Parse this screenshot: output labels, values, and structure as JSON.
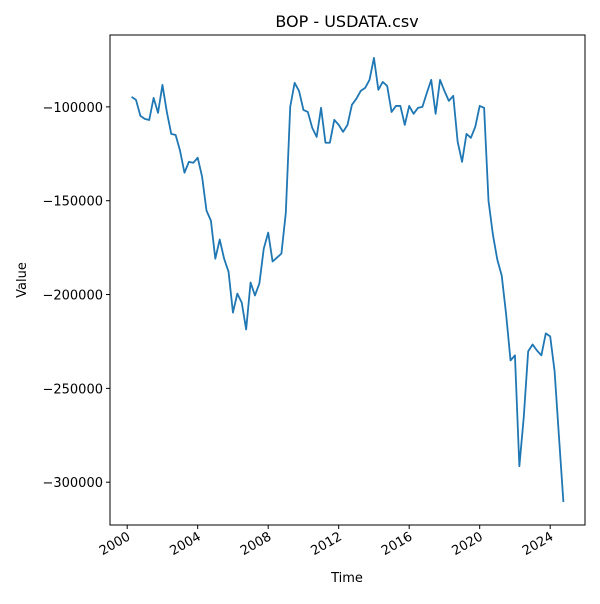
{
  "chart_data": {
    "type": "line",
    "title": "BOP - USDATA.csv",
    "x_label": "Time",
    "y_label": "Value",
    "x": [
      2000.25,
      2000.5,
      2000.75,
      2001,
      2001.25,
      2001.5,
      2001.75,
      2002,
      2002.25,
      2002.5,
      2002.75,
      2003,
      2003.25,
      2003.5,
      2003.75,
      2004,
      2004.25,
      2004.5,
      2004.75,
      2005,
      2005.25,
      2005.5,
      2005.75,
      2006,
      2006.25,
      2006.5,
      2006.75,
      2007,
      2007.25,
      2007.5,
      2007.75,
      2008,
      2008.25,
      2008.5,
      2008.75,
      2009,
      2009.25,
      2009.5,
      2009.75,
      2010,
      2010.25,
      2010.5,
      2010.75,
      2011,
      2011.25,
      2011.5,
      2011.75,
      2012,
      2012.25,
      2012.5,
      2012.75,
      2013,
      2013.25,
      2013.5,
      2013.75,
      2014,
      2014.25,
      2014.5,
      2014.75,
      2015,
      2015.25,
      2015.5,
      2015.75,
      2016,
      2016.25,
      2016.5,
      2016.75,
      2017,
      2017.25,
      2017.5,
      2017.75,
      2018,
      2018.25,
      2018.5,
      2018.75,
      2019,
      2019.25,
      2019.5,
      2019.75,
      2020,
      2020.25,
      2020.5,
      2020.75,
      2021,
      2021.25,
      2021.5,
      2021.75,
      2022,
      2022.25,
      2022.5,
      2022.75,
      2023,
      2023.25,
      2023.5,
      2023.75,
      2024,
      2024.25,
      2024.5,
      2024.75
    ],
    "series": [
      {
        "name": "BOP",
        "color": "#1f77b4",
        "values": [
          -94700,
          -96300,
          -104800,
          -106400,
          -107000,
          -95200,
          -103200,
          -88300,
          -102700,
          -114400,
          -115000,
          -123400,
          -135100,
          -129300,
          -129800,
          -127100,
          -137200,
          -155300,
          -160600,
          -180900,
          -170700,
          -180900,
          -187800,
          -209600,
          -199500,
          -204300,
          -218600,
          -193600,
          -200500,
          -194100,
          -175500,
          -167000,
          -182400,
          -180300,
          -178200,
          -156400,
          -100000,
          -87200,
          -91500,
          -101600,
          -102700,
          -111200,
          -116000,
          -100500,
          -119100,
          -119100,
          -106900,
          -109600,
          -113300,
          -109600,
          -98900,
          -95700,
          -91500,
          -89900,
          -85600,
          -73900,
          -90900,
          -86700,
          -88800,
          -102700,
          -99500,
          -99500,
          -109600,
          -99500,
          -103700,
          -100500,
          -100000,
          -92600,
          -85600,
          -103700,
          -85600,
          -91500,
          -96800,
          -94100,
          -118600,
          -129300,
          -114400,
          -116500,
          -110600,
          -99500,
          -100500,
          -150000,
          -168100,
          -181400,
          -189900,
          -210600,
          -235100,
          -232400,
          -291500,
          -265400,
          -230300,
          -226600,
          -229800,
          -232400,
          -220700,
          -222300,
          -240900,
          -276000,
          -310600
        ]
      }
    ],
    "xlim": [
      1999.025,
      2025.975
    ],
    "ylim": [
      -322800,
      -61700
    ],
    "xticks": [
      2000,
      2004,
      2008,
      2012,
      2016,
      2020,
      2024
    ],
    "yticks": [
      {
        "value": -100000,
        "label": "−100000"
      },
      {
        "value": -150000,
        "label": "−150000"
      },
      {
        "value": -200000,
        "label": "−200000"
      },
      {
        "value": -250000,
        "label": "−250000"
      },
      {
        "value": -300000,
        "label": "−300000"
      }
    ]
  }
}
